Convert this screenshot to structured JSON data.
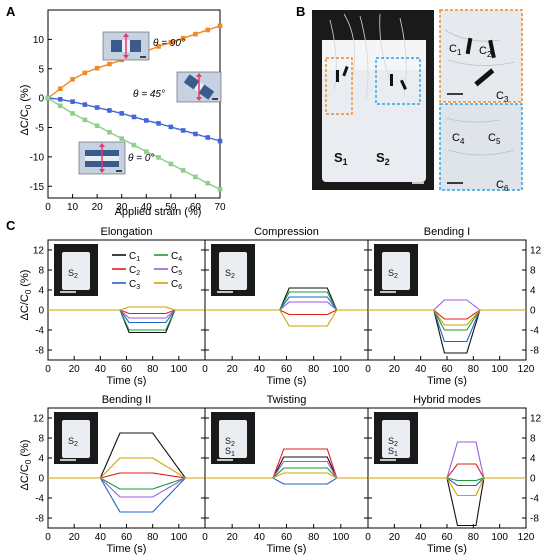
{
  "panel_labels": {
    "a": "A",
    "b": "B",
    "c": "C"
  },
  "colors": {
    "orange": "#f08a24",
    "blue": "#4466d8",
    "green": "#8fcf8a",
    "C1": "#111111",
    "C2": "#e0201c",
    "C3": "#1f66c8",
    "C4": "#1a9a3a",
    "C5": "#9a5ee0",
    "C6": "#d6a000",
    "inset_bg": "#c6d2e2",
    "sample_white": "#e9edf1",
    "photo_dark": "#1a1a1a",
    "orange_box": "#f08a24",
    "cyan_box": "#2fa3e6"
  },
  "panelA": {
    "ylabel_main": "ΔC/C",
    "ylabel_sub": "0",
    "ylabel_unit": " (%)",
    "annot_90": "θ = 90°",
    "annot_45": "θ = 45°",
    "annot_0": "θ = 0°"
  },
  "panelB": {
    "s1": "S",
    "s1_sub": "1",
    "s2": "S",
    "s2_sub": "2",
    "c1": "C",
    "c1_sub": "1",
    "c2": "C",
    "c2_sub": "2",
    "c3": "C",
    "c3_sub": "3",
    "c4": "C",
    "c4_sub": "4",
    "c5": "C",
    "c5_sub": "5",
    "c6": "C",
    "c6_sub": "6"
  },
  "panelC": {
    "ylabel_main": "ΔC/C",
    "ylabel_sub": "0",
    "ylabel_unit": " (%)",
    "legend": [
      "C1",
      "C2",
      "C3",
      "C4",
      "C5",
      "C6"
    ],
    "inset_labels": {
      "elong": "S2",
      "comp": "S2",
      "bend1": "S2",
      "bend2": "S2",
      "twist_a": "S2",
      "twist_b": "S1",
      "hyb_a": "S2",
      "hyb_b": "S1"
    }
  },
  "chart_data": [
    {
      "id": "A",
      "type": "line",
      "xlabel": "Applied strain (%)",
      "xlim": [
        0,
        70
      ],
      "ylim": [
        -17,
        15
      ],
      "xticks": [
        0,
        10,
        20,
        30,
        40,
        50,
        60,
        70
      ],
      "yticks": [
        -15,
        -10,
        -5,
        0,
        5,
        10
      ],
      "x": [
        0,
        5,
        10,
        15,
        20,
        25,
        30,
        35,
        40,
        45,
        50,
        55,
        60,
        65,
        70
      ],
      "series": [
        {
          "name": "θ = 90°",
          "color": "#f08a24",
          "values": [
            0,
            1.6,
            3.2,
            4.3,
            5.1,
            5.8,
            6.5,
            7.3,
            8.0,
            8.8,
            9.5,
            10.2,
            10.9,
            11.6,
            12.3
          ]
        },
        {
          "name": "θ = 45°",
          "color": "#4466d8",
          "values": [
            0,
            -0.2,
            -0.6,
            -1.1,
            -1.6,
            -2.1,
            -2.6,
            -3.2,
            -3.8,
            -4.3,
            -4.9,
            -5.5,
            -6.1,
            -6.7,
            -7.3
          ]
        },
        {
          "name": "θ = 0°",
          "color": "#8fcf8a",
          "values": [
            0,
            -1.3,
            -2.6,
            -3.7,
            -4.7,
            -5.8,
            -6.9,
            -8.0,
            -9.1,
            -10.1,
            -11.2,
            -12.3,
            -13.4,
            -14.5,
            -15.5
          ]
        }
      ]
    },
    {
      "id": "C-elongation",
      "type": "line",
      "title": "Elongation",
      "xlabel": "Time (s)",
      "xlim": [
        0,
        120
      ],
      "ylim": [
        -10,
        14
      ],
      "xticks": [
        0,
        20,
        40,
        60,
        80,
        100
      ],
      "yticks": [
        -8,
        -4,
        0,
        4,
        8,
        12
      ],
      "pulse": [
        55,
        62,
        90,
        97
      ],
      "levels": {
        "C1": -4.5,
        "C2": -0.7,
        "C3": -2.5,
        "C4": -4.0,
        "C5": -1.6,
        "C6": 0.6
      }
    },
    {
      "id": "C-compression",
      "type": "line",
      "title": "Compression",
      "xlabel": "Time (s)",
      "xlim": [
        0,
        120
      ],
      "ylim": [
        -10,
        14
      ],
      "xticks": [
        0,
        20,
        40,
        60,
        80,
        100
      ],
      "yticks": [
        -8,
        -4,
        0,
        4,
        8,
        12
      ],
      "pulse": [
        55,
        62,
        90,
        97
      ],
      "levels": {
        "C1": 4.4,
        "C2": -0.9,
        "C3": 2.6,
        "C4": 3.6,
        "C5": 1.6,
        "C6": -3.2
      }
    },
    {
      "id": "C-bending1",
      "type": "line",
      "title": "Bending I",
      "xlabel": "Time (s)",
      "xlim": [
        0,
        120
      ],
      "ylim": [
        -10,
        14
      ],
      "xticks": [
        0,
        20,
        40,
        60,
        80,
        100,
        120
      ],
      "yticks": [
        -8,
        -4,
        0,
        4,
        8,
        12
      ],
      "pulse": [
        50,
        58,
        75,
        85
      ],
      "levels": {
        "C1": -8.6,
        "C2": -1.8,
        "C3": -6.3,
        "C4": -4.0,
        "C5": 2.0,
        "C6": -3.0
      }
    },
    {
      "id": "C-bending2",
      "type": "line",
      "title": "Bending II",
      "xlabel": "Time (s)",
      "xlim": [
        0,
        120
      ],
      "ylim": [
        -10,
        14
      ],
      "xticks": [
        0,
        20,
        40,
        60,
        80,
        100
      ],
      "yticks": [
        -8,
        -4,
        0,
        4,
        8,
        12
      ],
      "pulse": [
        40,
        55,
        80,
        105
      ],
      "levels": {
        "C1": 9.0,
        "C2": 1.0,
        "C3": -6.8,
        "C4": -2.2,
        "C5": -3.8,
        "C6": 4.0
      }
    },
    {
      "id": "C-twisting",
      "type": "line",
      "title": "Twisting",
      "xlabel": "Time (s)",
      "xlim": [
        0,
        120
      ],
      "ylim": [
        -10,
        14
      ],
      "xticks": [
        0,
        20,
        40,
        60,
        80,
        100
      ],
      "yticks": [
        -8,
        -4,
        0,
        4,
        8,
        12
      ],
      "pulse": [
        50,
        58,
        90,
        97
      ],
      "levels": {
        "C1": 4.2,
        "C2": 5.8,
        "C3": -1.2,
        "C4": 2.0,
        "C5": 3.3,
        "C6": 1.0
      }
    },
    {
      "id": "C-hybrid",
      "type": "line",
      "title": "Hybrid modes",
      "xlabel": "Time (s)",
      "xlim": [
        0,
        120
      ],
      "ylim": [
        -10,
        14
      ],
      "xticks": [
        0,
        20,
        40,
        60,
        80,
        100,
        120
      ],
      "yticks": [
        -8,
        -4,
        0,
        4,
        8,
        12
      ],
      "pulse": [
        60,
        68,
        82,
        88
      ],
      "levels": {
        "C1": -9.5,
        "C2": 2.8,
        "C3": -1.5,
        "C4": -0.5,
        "C5": 7.2,
        "C6": -3.5
      }
    }
  ]
}
